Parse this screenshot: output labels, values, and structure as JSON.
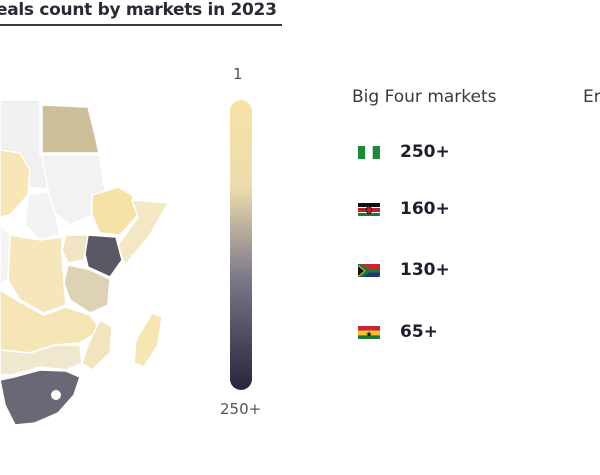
{
  "header": {
    "title": "eals count by markets in 2023"
  },
  "legend_scale": {
    "top_label": "1",
    "bottom_label": "250+"
  },
  "markets": {
    "section_title": "Big Four markets",
    "next_section_partial": "Er",
    "items": [
      {
        "flag": "nigeria-flag",
        "value": "250+"
      },
      {
        "flag": "kenya-flag",
        "value": "160+"
      },
      {
        "flag": "south-africa-flag",
        "value": "130+"
      },
      {
        "flag": "ghana-flag",
        "value": "65+"
      }
    ]
  },
  "colors": {
    "scale_light": "#f7e3a6",
    "scale_dark": "#28243a",
    "egypt": "#cdbf9a",
    "kenya": "#5b5866",
    "south_africa": "#6a6776"
  }
}
